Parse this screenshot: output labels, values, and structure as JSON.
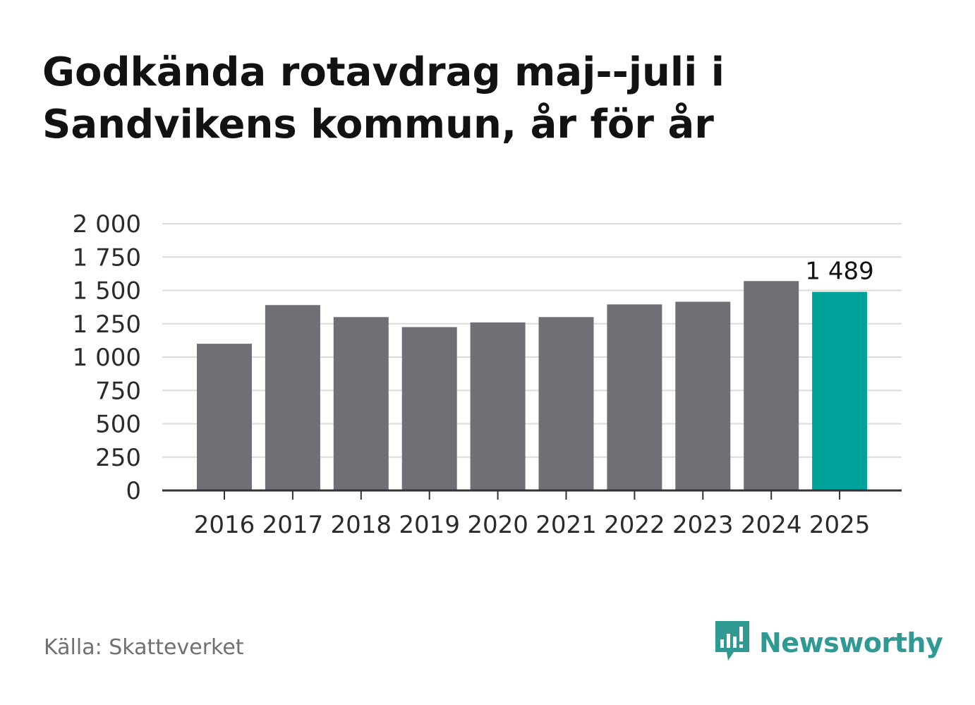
{
  "title": "Godkända rotavdrag maj--juli i Sandvikens kommun, år för år",
  "source": "Källa: Skatteverket",
  "brand": {
    "name": "Newsworthy",
    "icon": "newsworthy-logo-icon",
    "color": "#2f9a94"
  },
  "colors": {
    "bar": "#706f75",
    "highlight": "#00a399",
    "grid": "#dcdcdc",
    "axis": "#333333"
  },
  "chart_data": {
    "type": "bar",
    "categories": [
      "2016",
      "2017",
      "2018",
      "2019",
      "2020",
      "2021",
      "2022",
      "2023",
      "2024",
      "2025"
    ],
    "values": [
      1100,
      1390,
      1300,
      1225,
      1260,
      1300,
      1395,
      1415,
      1570,
      1489
    ],
    "highlight_index": 9,
    "data_labels": [
      {
        "index": 9,
        "text": "1 489"
      }
    ],
    "ylim": [
      0,
      2000
    ],
    "yticks": [
      0,
      250,
      500,
      750,
      1000,
      1250,
      1500,
      1750,
      2000
    ],
    "ytick_labels": [
      "0",
      "250",
      "500",
      "750",
      "1 000",
      "1 250",
      "1 500",
      "1 750",
      "2 000"
    ],
    "title": "Godkända rotavdrag maj--juli i Sandvikens kommun, år för år",
    "xlabel": "",
    "ylabel": "",
    "grid": true,
    "legend": "none"
  }
}
